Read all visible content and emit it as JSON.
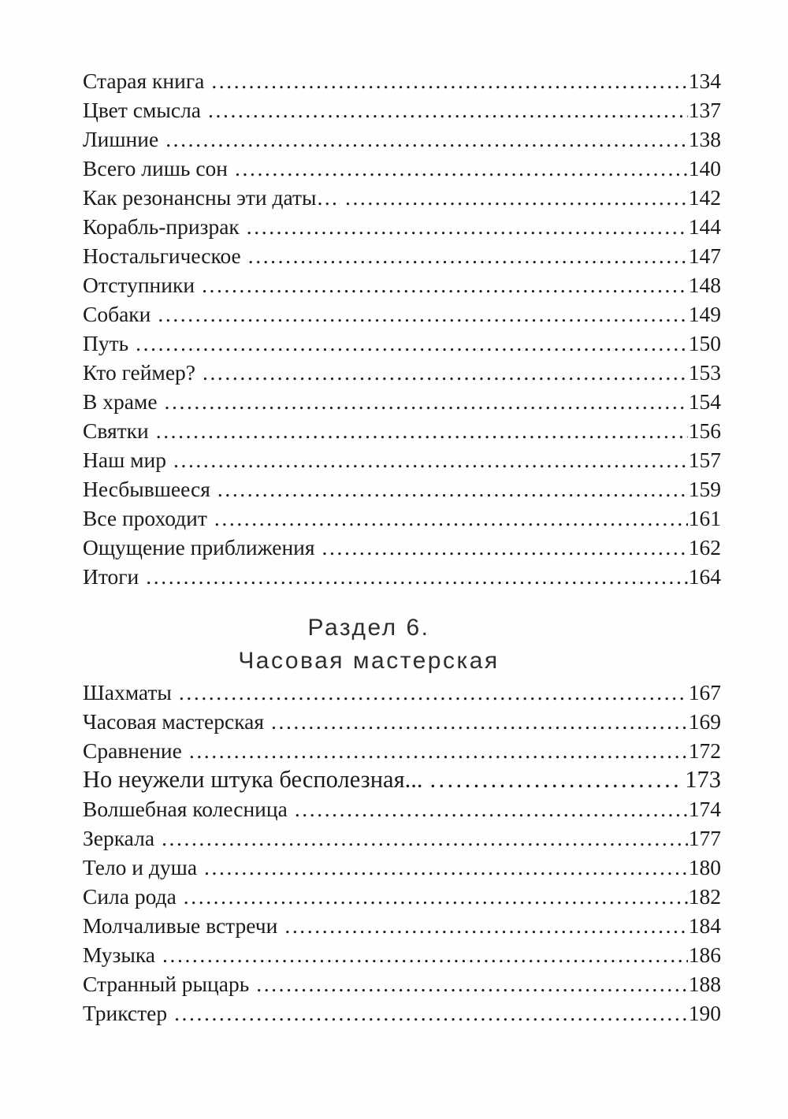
{
  "document": {
    "type": "table-of-contents-page",
    "text_color": "#1b1b1b",
    "background_color": "#fefefe",
    "entries_block1": [
      {
        "title": "Старая книга",
        "page": "134"
      },
      {
        "title": "Цвет смысла",
        "page": "137"
      },
      {
        "title": "Лишние",
        "page": "138"
      },
      {
        "title": "Всего лишь сон",
        "page": "140"
      },
      {
        "title": "Как резонансны эти даты…",
        "page": "142"
      },
      {
        "title": "Корабль-призрак",
        "page": "144"
      },
      {
        "title": "Ностальгическое",
        "page": "147"
      },
      {
        "title": "Отступники",
        "page": "148"
      },
      {
        "title": "Собаки",
        "page": "149"
      },
      {
        "title": "Путь",
        "page": "150"
      },
      {
        "title": "Кто геймер?",
        "page": "153"
      },
      {
        "title": "В храме",
        "page": "154"
      },
      {
        "title": "Святки",
        "page": "156"
      },
      {
        "title": "Наш мир",
        "page": "157"
      },
      {
        "title": "Несбывшееся",
        "page": "159"
      },
      {
        "title": "Все проходит",
        "page": "161"
      },
      {
        "title": "Ощущение приближения",
        "page": "162"
      },
      {
        "title": "Итоги",
        "page": "164"
      }
    ],
    "section_header": {
      "line1": "Раздел 6.",
      "line2": "Часовая мастерская"
    },
    "entries_block2": [
      {
        "title": "Шахматы",
        "page": "167"
      },
      {
        "title": "Часовая мастерская",
        "page": "169"
      },
      {
        "title": "Сравнение",
        "page": "172"
      },
      {
        "title": "Но неужели штука бесполезная...",
        "page": "173",
        "emphasis": true
      },
      {
        "title": "Волшебная колесница",
        "page": "174"
      },
      {
        "title": "Зеркала",
        "page": "177"
      },
      {
        "title": "Тело и душа",
        "page": "180"
      },
      {
        "title": "Сила рода",
        "page": "182"
      },
      {
        "title": "Молчаливые встречи",
        "page": "184"
      },
      {
        "title": "Музыка",
        "page": "186"
      },
      {
        "title": "Странный рыцарь",
        "page": "188"
      },
      {
        "title": "Трикстер",
        "page": "190"
      }
    ]
  }
}
